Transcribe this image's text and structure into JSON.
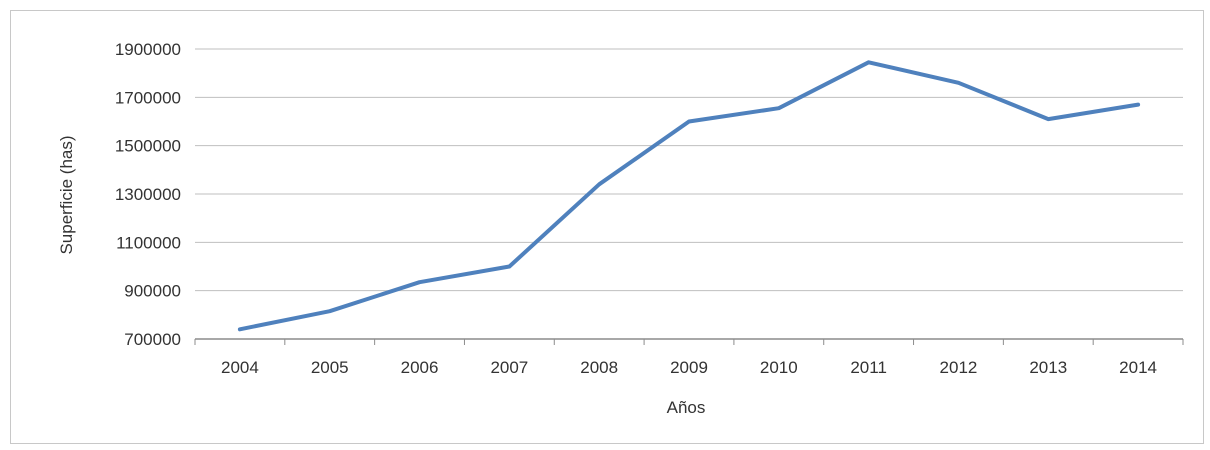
{
  "chart_data": {
    "type": "line",
    "title": "",
    "xlabel": "Años",
    "ylabel": "Superficie (has)",
    "categories": [
      "2004",
      "2005",
      "2006",
      "2007",
      "2008",
      "2009",
      "2010",
      "2011",
      "2012",
      "2013",
      "2014"
    ],
    "series": [
      {
        "name": "",
        "values": [
          740000,
          815000,
          935000,
          1000000,
          1340000,
          1600000,
          1655000,
          1845000,
          1760000,
          1610000,
          1670000
        ]
      }
    ],
    "ylim": [
      700000,
      1900000
    ],
    "yticks": [
      700000,
      900000,
      1100000,
      1300000,
      1500000,
      1700000,
      1900000
    ],
    "ytick_labels": [
      "700000",
      "900000",
      "1100000",
      "1300000",
      "1500000",
      "1700000",
      "1900000"
    ],
    "grid": true,
    "legend": "none",
    "line_color": "#4f81bd",
    "grid_color": "#bfbfbf"
  }
}
